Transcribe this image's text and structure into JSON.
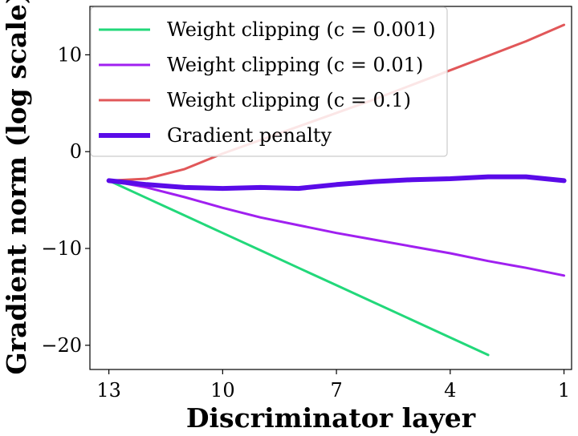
{
  "chart_data": {
    "type": "line",
    "title": "",
    "xlabel": "Discriminator layer",
    "ylabel": "Gradient norm (log scale)",
    "x": [
      13,
      12,
      11,
      10,
      9,
      8,
      7,
      6,
      5,
      4,
      3,
      2,
      1
    ],
    "xticks": [
      13,
      10,
      7,
      4,
      1
    ],
    "xtick_labels": [
      "13",
      "10",
      "7",
      "4",
      "1"
    ],
    "xlim": [
      13.5,
      0.8
    ],
    "yticks": [
      10,
      0,
      -10,
      -20
    ],
    "ytick_labels": [
      "10",
      "0",
      "−10",
      "−20"
    ],
    "ylim": [
      -22.5,
      15
    ],
    "legend_position": "upper left",
    "grid": false,
    "series": [
      {
        "name": "Weight clipping (c = 0.001)",
        "color": "#22d87a",
        "width": 3,
        "x": [
          13,
          12,
          11,
          10,
          9,
          8,
          7,
          6,
          5,
          4,
          3
        ],
        "values": [
          -3.0,
          -4.8,
          -6.6,
          -8.4,
          -10.2,
          -12.0,
          -13.8,
          -15.6,
          -17.4,
          -19.2,
          -21.0
        ]
      },
      {
        "name": "Weight clipping (c = 0.01)",
        "color": "#a020f0",
        "width": 3,
        "x": [
          13,
          12,
          11,
          10,
          9,
          8,
          7,
          6,
          5,
          4,
          3,
          2,
          1
        ],
        "values": [
          -3.0,
          -3.7,
          -4.7,
          -5.8,
          -6.8,
          -7.6,
          -8.4,
          -9.1,
          -9.8,
          -10.5,
          -11.3,
          -12.0,
          -12.8
        ]
      },
      {
        "name": "Weight clipping (c = 0.1)",
        "color": "#e15759",
        "width": 3,
        "x": [
          13,
          12,
          11,
          10,
          9,
          8,
          7,
          6,
          5,
          4,
          3,
          2,
          1
        ],
        "values": [
          -3.0,
          -2.8,
          -1.8,
          -0.2,
          1.2,
          2.6,
          4.0,
          5.4,
          6.9,
          8.4,
          9.9,
          11.4,
          13.1
        ]
      },
      {
        "name": "Gradient penalty",
        "color": "#5a0be8",
        "width": 6,
        "x": [
          13,
          12,
          11,
          10,
          9,
          8,
          7,
          6,
          5,
          4,
          3,
          2,
          1
        ],
        "values": [
          -3.0,
          -3.4,
          -3.7,
          -3.8,
          -3.7,
          -3.8,
          -3.4,
          -3.1,
          -2.9,
          -2.8,
          -2.6,
          -2.6,
          -3.0
        ]
      }
    ]
  }
}
